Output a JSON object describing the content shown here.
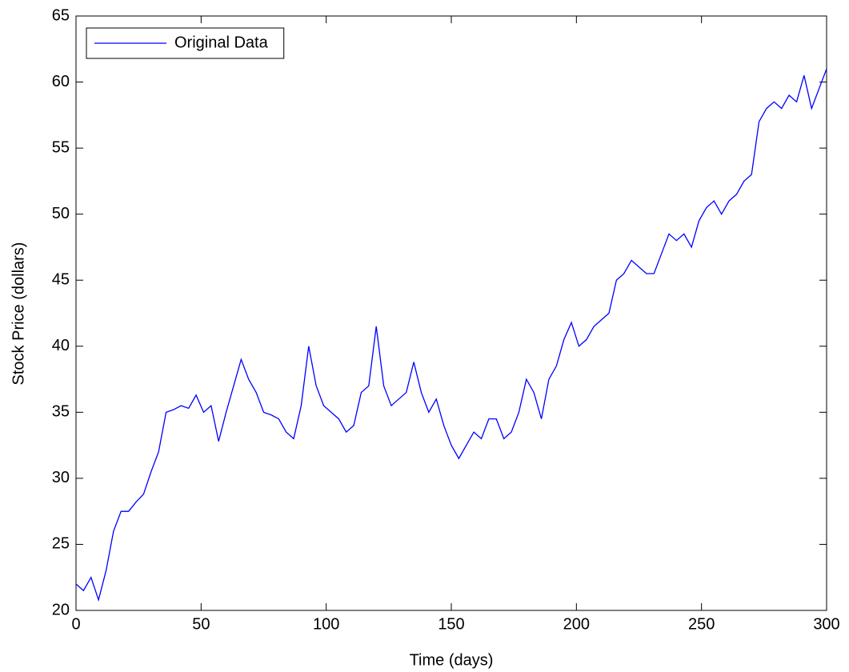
{
  "chart_data": {
    "type": "line",
    "xlabel": "Time (days)",
    "ylabel": "Stock Price (dollars)",
    "x": [
      0,
      3,
      6,
      9,
      12,
      15,
      18,
      21,
      24,
      27,
      30,
      33,
      36,
      39,
      42,
      45,
      48,
      51,
      54,
      57,
      60,
      63,
      66,
      69,
      72,
      75,
      78,
      81,
      84,
      87,
      90,
      93,
      96,
      99,
      102,
      105,
      108,
      111,
      114,
      117,
      120,
      123,
      126,
      129,
      132,
      135,
      138,
      141,
      144,
      147,
      150,
      153,
      156,
      159,
      162,
      165,
      168,
      171,
      174,
      177,
      180,
      183,
      186,
      189,
      192,
      195,
      198,
      201,
      204,
      207,
      210,
      213,
      216,
      219,
      222,
      225,
      228,
      231,
      234,
      237,
      240,
      243,
      246,
      249,
      252,
      255,
      258,
      261,
      264,
      267,
      270,
      273,
      276,
      279,
      282,
      285,
      288,
      291,
      294,
      297,
      300
    ],
    "series": [
      {
        "name": "Original Data",
        "color": "#0000ff",
        "values": [
          22,
          21.5,
          22.5,
          20.8,
          23,
          26,
          27.5,
          27.5,
          28.2,
          28.8,
          30.5,
          32,
          35,
          35.2,
          35.5,
          35.3,
          36.3,
          35,
          35.5,
          32.8,
          35,
          37,
          39,
          37.5,
          36.5,
          35,
          34.8,
          34.5,
          33.5,
          33,
          35.5,
          40,
          37,
          35.5,
          35,
          34.5,
          33.5,
          34,
          36.5,
          37,
          41.5,
          37,
          35.5,
          36,
          36.5,
          38.8,
          36.5,
          35,
          36,
          34,
          32.5,
          31.5,
          32.5,
          33.5,
          33,
          34.5,
          34.5,
          33,
          33.5,
          35,
          37.5,
          36.5,
          34.5,
          37.5,
          38.5,
          40.5,
          41.8,
          40,
          40.5,
          41.5,
          42,
          42.5,
          45,
          45.5,
          46.5,
          46,
          45.5,
          45.5,
          47,
          48.5,
          48,
          48.5,
          47.5,
          49.5,
          50.5,
          51,
          50,
          51,
          51.5,
          52.5,
          53,
          57,
          58,
          58.5,
          58,
          59,
          58.5,
          60.5,
          58,
          59.5,
          61
        ]
      }
    ],
    "xlim": [
      0,
      300
    ],
    "xticks": [
      0,
      50,
      100,
      150,
      200,
      250,
      300
    ],
    "ylim": [
      20,
      65
    ],
    "yticks": [
      20,
      25,
      30,
      35,
      40,
      45,
      50,
      55,
      60,
      65
    ],
    "legend": "upper left"
  }
}
